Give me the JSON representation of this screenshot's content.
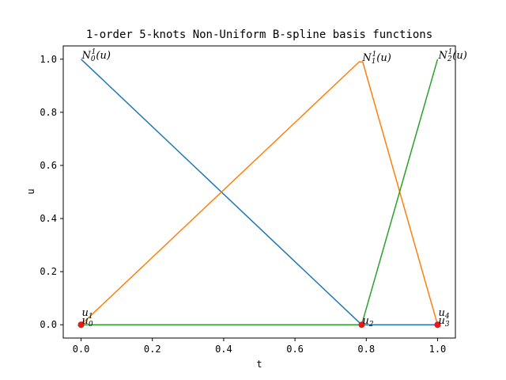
{
  "chart_data": {
    "type": "line",
    "title": "1-order 5-knots Non-Uniform B-spline basis functions",
    "xlabel": "t",
    "ylabel": "u",
    "xlim": [
      -0.05,
      1.05
    ],
    "ylim": [
      -0.05,
      1.05
    ],
    "xticks": [
      0.0,
      0.2,
      0.4,
      0.6,
      0.8,
      1.0
    ],
    "xtick_labels": [
      "0.0",
      "0.2",
      "0.4",
      "0.6",
      "0.8",
      "1.0"
    ],
    "yticks": [
      0.0,
      0.2,
      0.4,
      0.6,
      0.8,
      1.0
    ],
    "ytick_labels": [
      "0.0",
      "0.2",
      "0.4",
      "0.6",
      "0.8",
      "1.0"
    ],
    "grid": false,
    "series": [
      {
        "color": "#1f77b4",
        "x": [
          0.0,
          0.787,
          1.0
        ],
        "y": [
          1.0,
          0.0,
          0.0
        ]
      },
      {
        "color": "#ff7f0e",
        "x": [
          0.0,
          0.78,
          0.79,
          1.0
        ],
        "y": [
          0.0,
          0.99,
          0.99,
          0.0
        ]
      },
      {
        "color": "#2ca02c",
        "x": [
          0.0,
          0.787,
          1.0
        ],
        "y": [
          0.0,
          0.0,
          1.0
        ]
      }
    ],
    "knots": {
      "color": "#e8191a",
      "x": [
        0.0,
        0.0,
        0.787,
        1.0,
        1.0
      ],
      "y": [
        0,
        0,
        0,
        0,
        0
      ]
    },
    "annotations": [
      {
        "base": "N",
        "sub": "0",
        "sup": "1",
        "tail": "(u)",
        "x": 0.0,
        "y": 1.0
      },
      {
        "base": "N",
        "sub": "1",
        "sup": "1",
        "tail": "(u)",
        "x": 0.787,
        "y": 0.99
      },
      {
        "base": "N",
        "sub": "2",
        "sup": "1",
        "tail": "(u)",
        "x": 1.0,
        "y": 1.0
      },
      {
        "base": "u",
        "sub": "0",
        "sup": "",
        "tail": "",
        "x": 0.0,
        "y": 0.0
      },
      {
        "base": "u",
        "sub": "1",
        "sup": "",
        "tail": "",
        "x": 0.0,
        "y": 0.0,
        "stack": 1
      },
      {
        "base": "u",
        "sub": "2",
        "sup": "",
        "tail": "",
        "x": 0.787,
        "y": 0.0
      },
      {
        "base": "u",
        "sub": "3",
        "sup": "",
        "tail": "",
        "x": 1.0,
        "y": 0.0
      },
      {
        "base": "u",
        "sub": "4",
        "sup": "",
        "tail": "",
        "x": 1.0,
        "y": 0.0,
        "stack": 1
      }
    ]
  }
}
